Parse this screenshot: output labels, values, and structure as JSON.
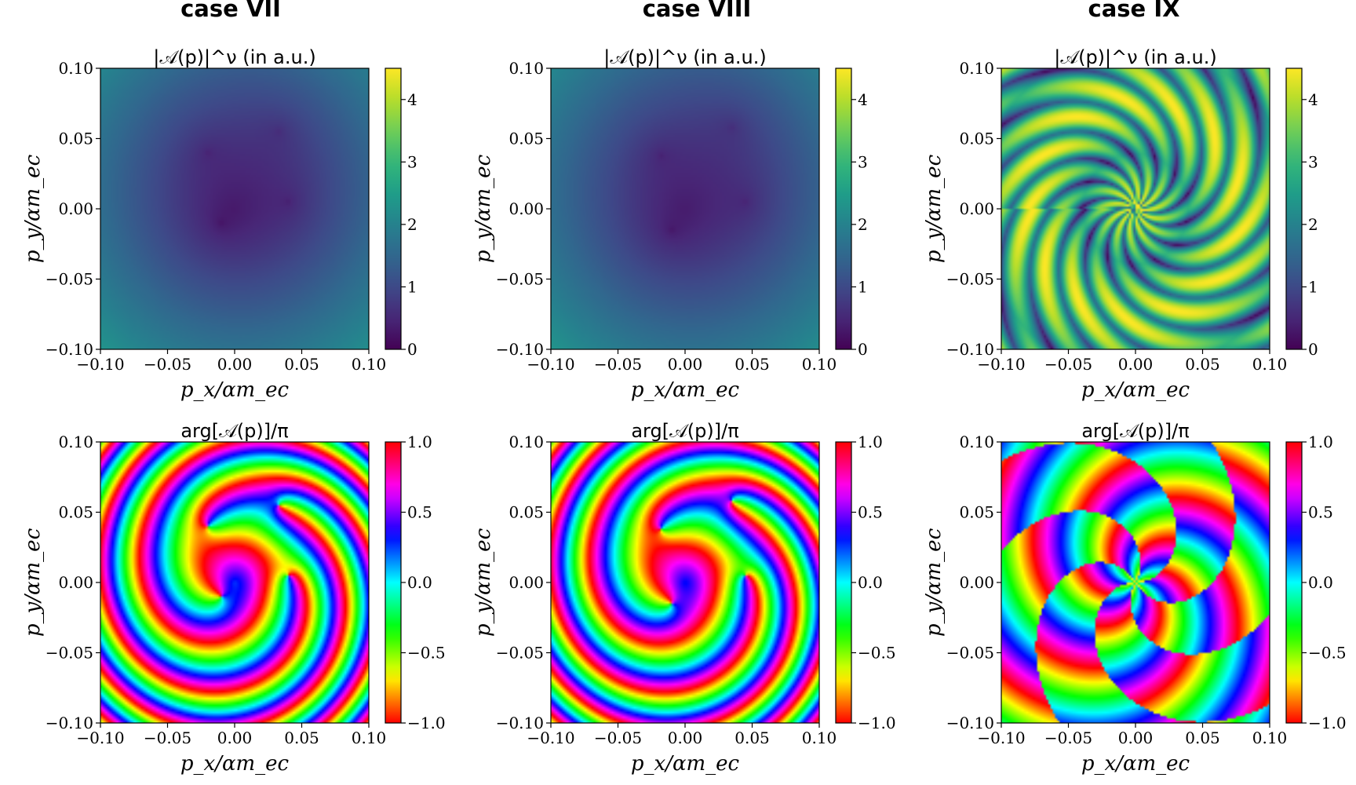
{
  "cases": [
    {
      "title": "case VII"
    },
    {
      "title": "case VIII"
    },
    {
      "title": "case IX"
    }
  ],
  "chart_data": [
    {
      "type": "heatmap",
      "case": "case VII",
      "title": "|𝒜(p)|^ν (in a.u.)",
      "xlabel": "p_x/αm_ec",
      "ylabel": "p_y/αm_ec",
      "xlim": [
        -0.1,
        0.1
      ],
      "ylim": [
        -0.1,
        0.1
      ],
      "xticks": [
        "−0.10",
        "−0.05",
        "0.00",
        "0.05",
        "0.10"
      ],
      "yticks": [
        "−0.10",
        "−0.05",
        "0.00",
        "0.05",
        "0.10"
      ],
      "colorbar": {
        "range": [
          0,
          4.5
        ],
        "ticks": [
          "0",
          "1",
          "2",
          "3",
          "4"
        ],
        "colormap": "viridis"
      },
      "features": {
        "zeros": [
          [
            -0.01,
            -0.01
          ],
          [
            0.033,
            0.055
          ],
          [
            -0.02,
            0.04
          ],
          [
            0.04,
            0.005
          ]
        ]
      }
    },
    {
      "type": "heatmap",
      "case": "case VIII",
      "title": "|𝒜(p)|^ν (in a.u.)",
      "xlabel": "p_x/αm_ec",
      "ylabel": "p_y/αm_ec",
      "xlim": [
        -0.1,
        0.1
      ],
      "ylim": [
        -0.1,
        0.1
      ],
      "xticks": [
        "−0.10",
        "−0.05",
        "0.00",
        "0.05",
        "0.10"
      ],
      "yticks": [
        "−0.10",
        "−0.05",
        "0.00",
        "0.05",
        "0.10"
      ],
      "colorbar": {
        "range": [
          0,
          4.5
        ],
        "ticks": [
          "0",
          "1",
          "2",
          "3",
          "4"
        ],
        "colormap": "viridis"
      },
      "features": {
        "zeros": [
          [
            -0.01,
            -0.015
          ],
          [
            0.035,
            0.058
          ],
          [
            -0.018,
            0.038
          ],
          [
            0.045,
            0.005
          ]
        ]
      }
    },
    {
      "type": "heatmap",
      "case": "case IX",
      "title": "|𝒜(p)|^ν (in a.u.)",
      "xlabel": "p_x/αm_ec",
      "ylabel": "p_y/αm_ec",
      "xlim": [
        -0.1,
        0.1
      ],
      "ylim": [
        -0.1,
        0.1
      ],
      "xticks": [
        "−0.10",
        "−0.05",
        "0.00",
        "0.05",
        "0.10"
      ],
      "yticks": [
        "−0.10",
        "−0.05",
        "0.00",
        "0.05",
        "0.10"
      ],
      "colorbar": {
        "range": [
          0,
          4.5
        ],
        "ticks": [
          "0",
          "1",
          "2",
          "3",
          "4"
        ],
        "colormap": "viridis"
      },
      "features": {
        "spiral_arms": 3
      }
    },
    {
      "type": "heatmap",
      "case": "case VII",
      "title": "arg[𝒜(p)]/π",
      "xlabel": "p_x/αm_ec",
      "ylabel": "p_y/αm_ec",
      "xlim": [
        -0.1,
        0.1
      ],
      "ylim": [
        -0.1,
        0.1
      ],
      "xticks": [
        "−0.10",
        "−0.05",
        "0.00",
        "0.05",
        "0.10"
      ],
      "yticks": [
        "−0.10",
        "−0.05",
        "0.00",
        "0.05",
        "0.10"
      ],
      "colorbar": {
        "range": [
          -1,
          1
        ],
        "ticks": [
          "−1.0",
          "−0.5",
          "0.0",
          "0.5",
          "1.0"
        ],
        "colormap": "hsv"
      },
      "features": {
        "vortices": [
          [
            -0.01,
            -0.01
          ],
          [
            0.033,
            0.055
          ],
          [
            -0.02,
            0.04
          ],
          [
            0.04,
            0.005
          ]
        ]
      }
    },
    {
      "type": "heatmap",
      "case": "case VIII",
      "title": "arg[𝒜(p)]/π",
      "xlabel": "p_x/αm_ec",
      "ylabel": "p_y/αm_ec",
      "xlim": [
        -0.1,
        0.1
      ],
      "ylim": [
        -0.1,
        0.1
      ],
      "xticks": [
        "−0.10",
        "−0.05",
        "0.00",
        "0.05",
        "0.10"
      ],
      "yticks": [
        "−0.10",
        "−0.05",
        "0.00",
        "0.05",
        "0.10"
      ],
      "colorbar": {
        "range": [
          -1,
          1
        ],
        "ticks": [
          "−1.0",
          "−0.5",
          "0.0",
          "0.5",
          "1.0"
        ],
        "colormap": "hsv"
      },
      "features": {
        "vortices": [
          [
            -0.01,
            -0.015
          ],
          [
            0.035,
            0.058
          ],
          [
            -0.018,
            0.038
          ],
          [
            0.045,
            0.005
          ]
        ]
      }
    },
    {
      "type": "heatmap",
      "case": "case IX",
      "title": "arg[𝒜(p)]/π",
      "xlabel": "p_x/αm_ec",
      "ylabel": "p_y/αm_ec",
      "xlim": [
        -0.1,
        0.1
      ],
      "ylim": [
        -0.1,
        0.1
      ],
      "xticks": [
        "−0.10",
        "−0.05",
        "0.00",
        "0.05",
        "0.10"
      ],
      "yticks": [
        "−0.10",
        "−0.05",
        "0.00",
        "0.05",
        "0.10"
      ],
      "colorbar": {
        "range": [
          -1,
          1
        ],
        "ticks": [
          "−1.0",
          "−0.5",
          "0.0",
          "0.5",
          "1.0"
        ],
        "colormap": "hsv"
      },
      "features": {
        "spiral_arms": 3
      }
    }
  ]
}
